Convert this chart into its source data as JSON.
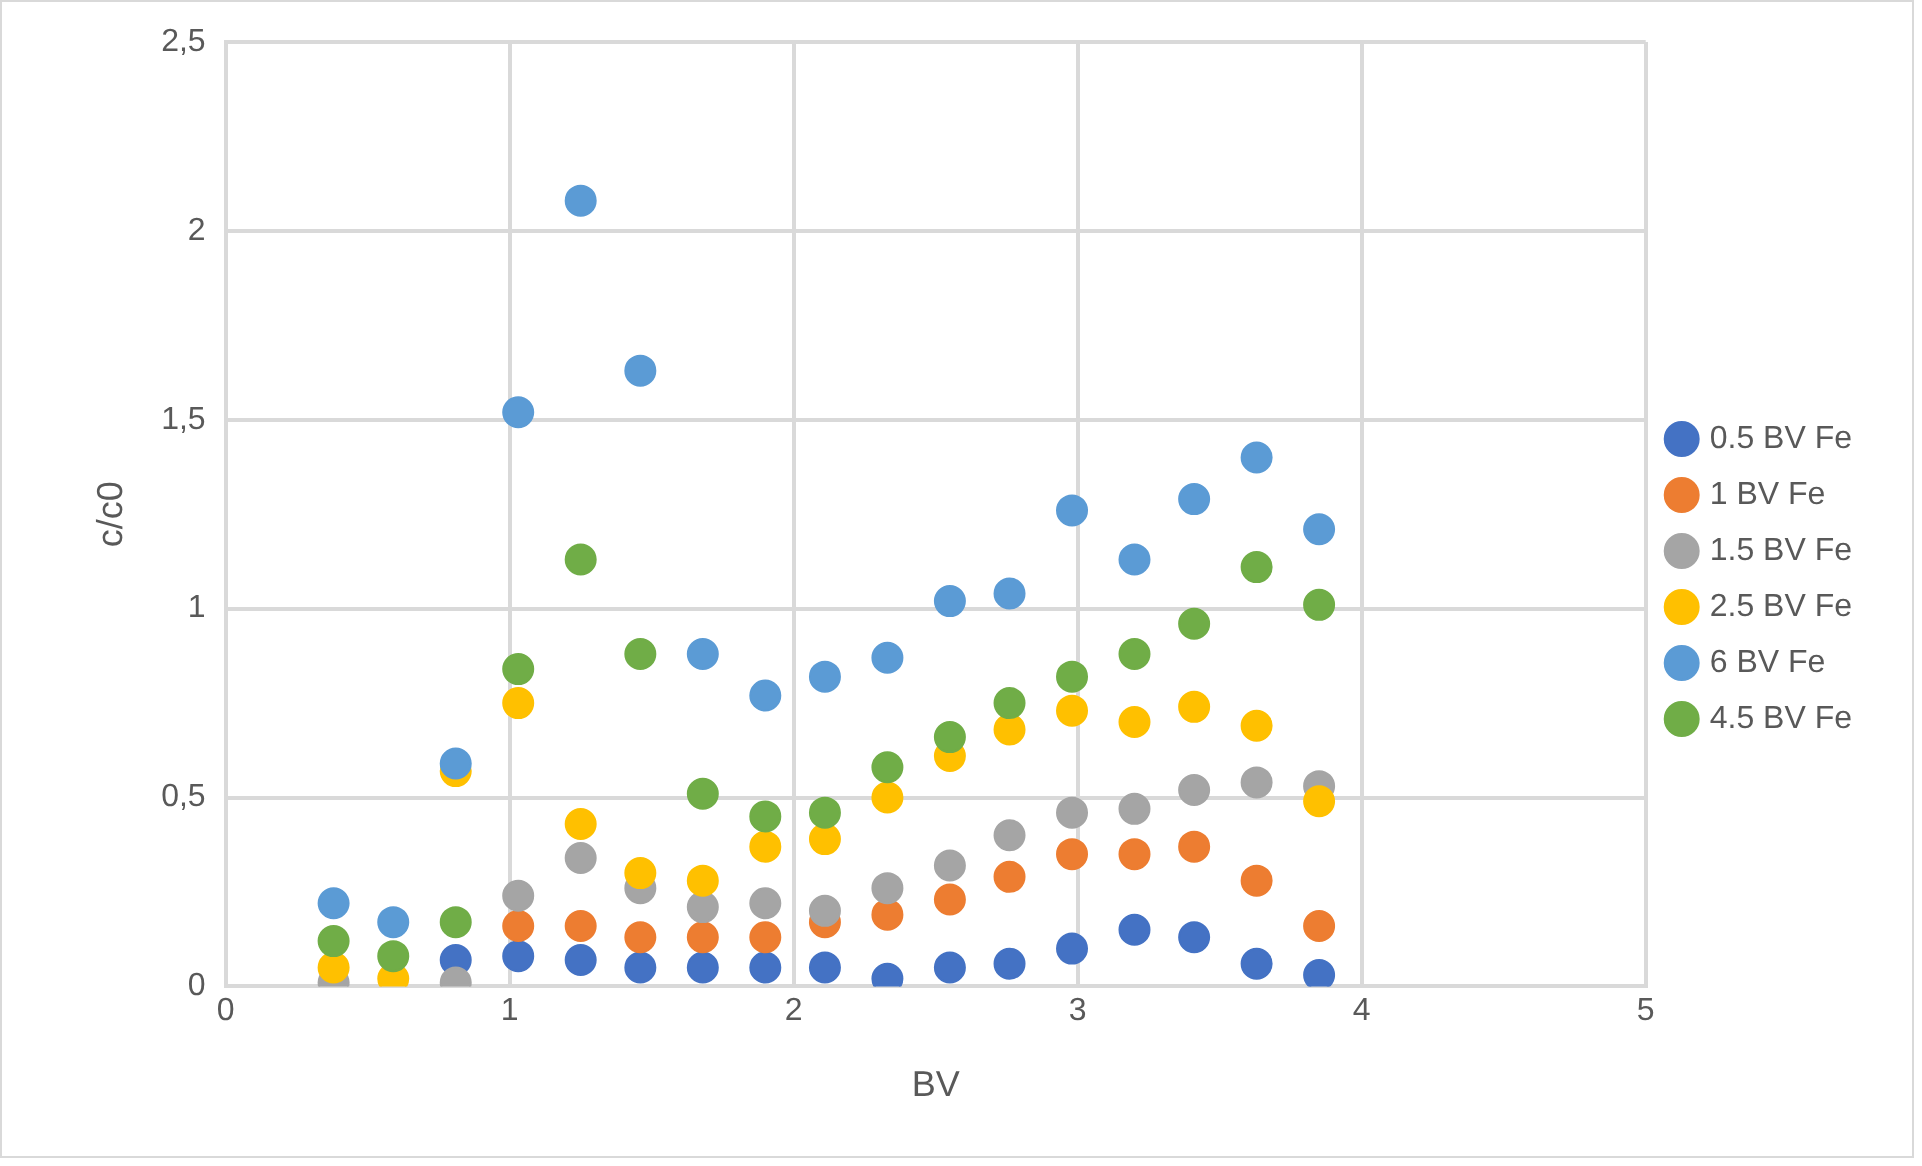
{
  "chart_data": {
    "type": "scatter",
    "xlabel": "BV",
    "ylabel": "c/c0",
    "x": [
      0.38,
      0.59,
      0.81,
      1.03,
      1.25,
      1.46,
      1.68,
      1.9,
      2.11,
      2.33,
      2.55,
      2.76,
      2.98,
      3.2,
      3.41,
      3.63,
      3.85
    ],
    "series": [
      {
        "name": "0.5 BV Fe",
        "color": "#4472c4",
        "values": [
          null,
          null,
          0.07,
          0.08,
          0.07,
          0.05,
          0.05,
          0.05,
          0.05,
          0.02,
          0.05,
          0.06,
          0.1,
          0.15,
          0.13,
          0.06,
          0.03
        ]
      },
      {
        "name": "1 BV Fe",
        "color": "#ed7d31",
        "values": [
          null,
          null,
          null,
          0.16,
          0.16,
          0.13,
          0.13,
          0.13,
          0.17,
          0.19,
          0.23,
          0.29,
          0.35,
          0.35,
          0.37,
          0.28,
          0.16
        ]
      },
      {
        "name": "1.5 BV Fe",
        "color": "#a5a5a5",
        "values": [
          0.01,
          null,
          0.01,
          0.24,
          0.34,
          0.26,
          0.21,
          0.22,
          0.2,
          0.26,
          0.32,
          0.4,
          0.46,
          0.47,
          0.52,
          0.54,
          0.53
        ]
      },
      {
        "name": "2.5 BV Fe",
        "color": "#ffc000",
        "values": [
          0.05,
          0.02,
          0.57,
          0.75,
          0.43,
          0.3,
          0.28,
          0.37,
          0.39,
          0.5,
          0.61,
          0.68,
          0.73,
          0.7,
          0.74,
          0.69,
          0.49
        ]
      },
      {
        "name": "6 BV Fe",
        "color": "#5b9bd5",
        "values": [
          0.22,
          0.17,
          0.59,
          1.52,
          2.08,
          1.63,
          0.88,
          0.77,
          0.82,
          0.87,
          1.02,
          1.04,
          1.26,
          1.13,
          1.29,
          1.4,
          1.21
        ]
      },
      {
        "name": "4.5 BV Fe",
        "color": "#70ad47",
        "values": [
          0.12,
          0.08,
          0.17,
          0.84,
          1.13,
          0.88,
          0.51,
          0.45,
          0.46,
          0.58,
          0.66,
          0.75,
          0.82,
          0.88,
          0.96,
          1.11,
          1.01
        ]
      }
    ],
    "xlim": [
      0,
      5
    ],
    "xticks": [
      0,
      1,
      2,
      3,
      4,
      5
    ],
    "ylim": [
      0,
      2.5
    ],
    "yticks": [
      0,
      {
        "value": 0.5,
        "label": "0,5"
      },
      1,
      {
        "value": 1.5,
        "label": "1,5"
      },
      2,
      {
        "value": 2.5,
        "label": "2,5"
      }
    ],
    "grid": true,
    "legend": "right",
    "marker": "circle"
  }
}
